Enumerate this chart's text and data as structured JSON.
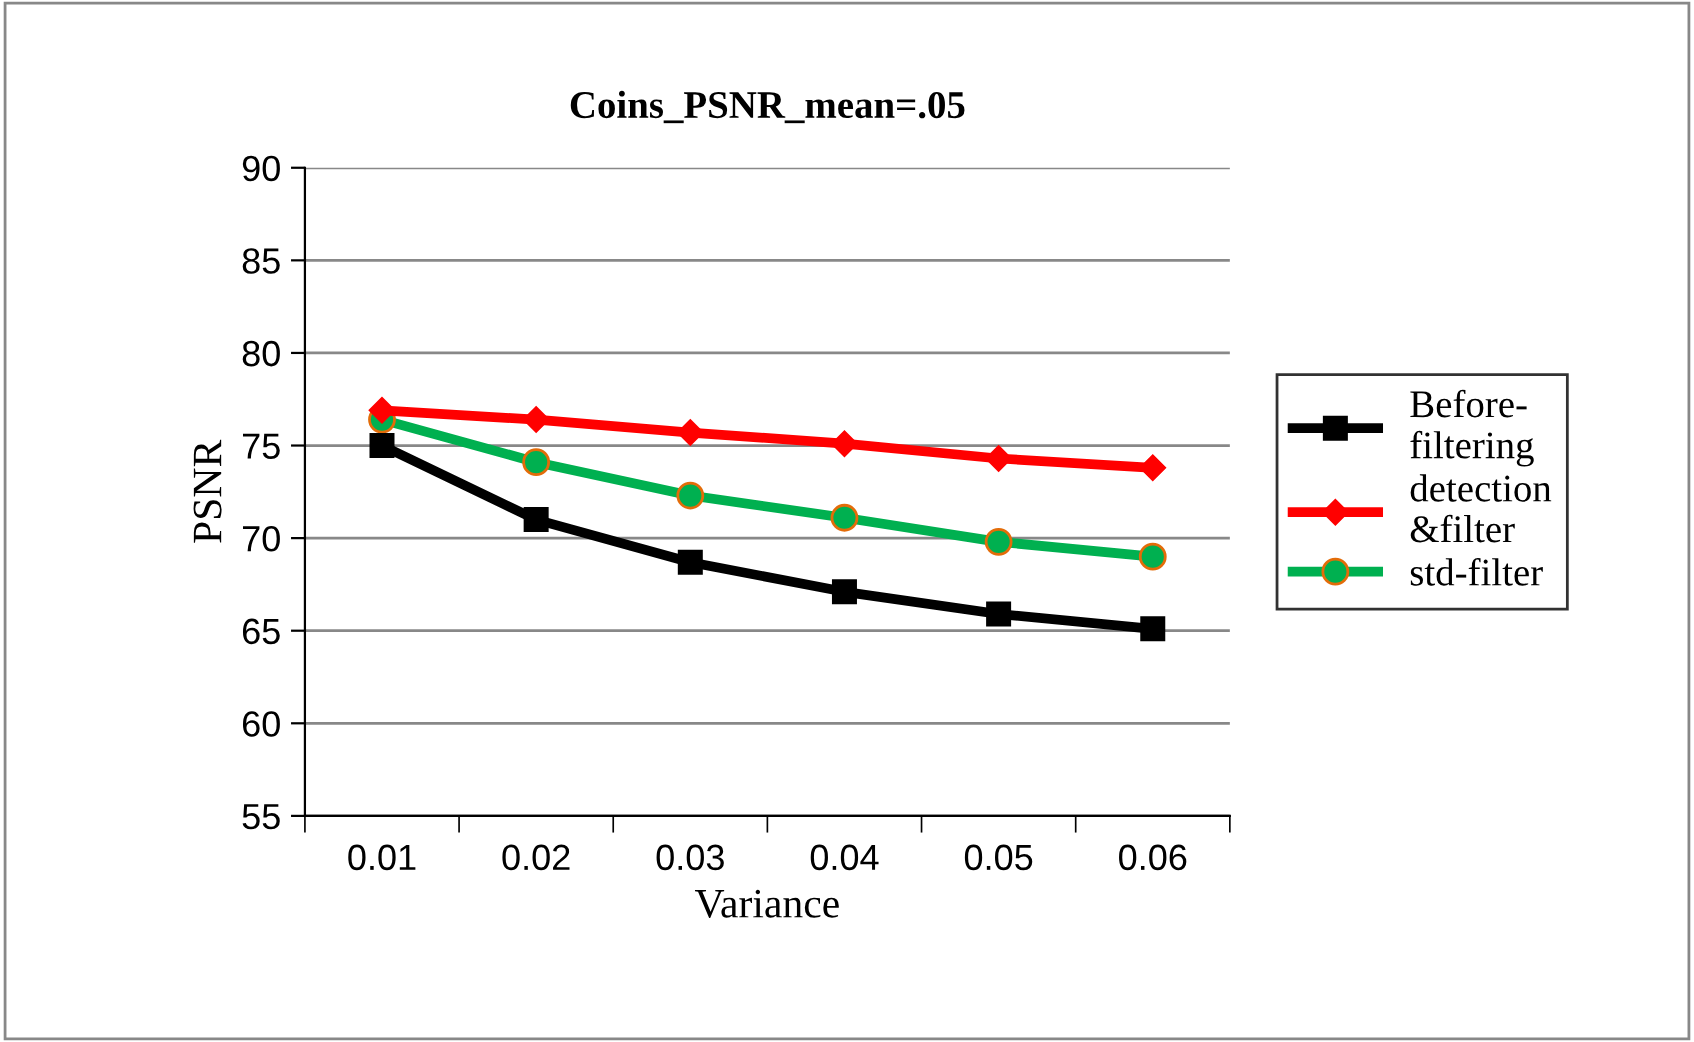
{
  "chart_data": {
    "type": "line",
    "title": "Coins_PSNR_mean=.05",
    "xlabel": "Variance",
    "ylabel": "PSNR",
    "categories": [
      "0.01",
      "0.02",
      "0.03",
      "0.04",
      "0.05",
      "0.06"
    ],
    "series": [
      {
        "name": "Before-\nfiltering",
        "color": "#000000",
        "marker": "square",
        "values": [
          75.0,
          71.0,
          68.7,
          67.1,
          65.9,
          65.1
        ]
      },
      {
        "name": "detection\n&filter",
        "color": "#ff0000",
        "marker": "diamond",
        "values": [
          76.9,
          76.4,
          75.7,
          75.1,
          74.3,
          73.8
        ]
      },
      {
        "name": "std-filter",
        "color": "#00b050",
        "marker": "circle",
        "values": [
          76.4,
          74.1,
          72.3,
          71.1,
          69.8,
          69.0
        ]
      }
    ],
    "ylim": [
      55,
      90
    ],
    "yticks": [
      55,
      60,
      65,
      70,
      75,
      80,
      85,
      90
    ],
    "grid": "y",
    "legend": "right",
    "line_style": "solid"
  }
}
